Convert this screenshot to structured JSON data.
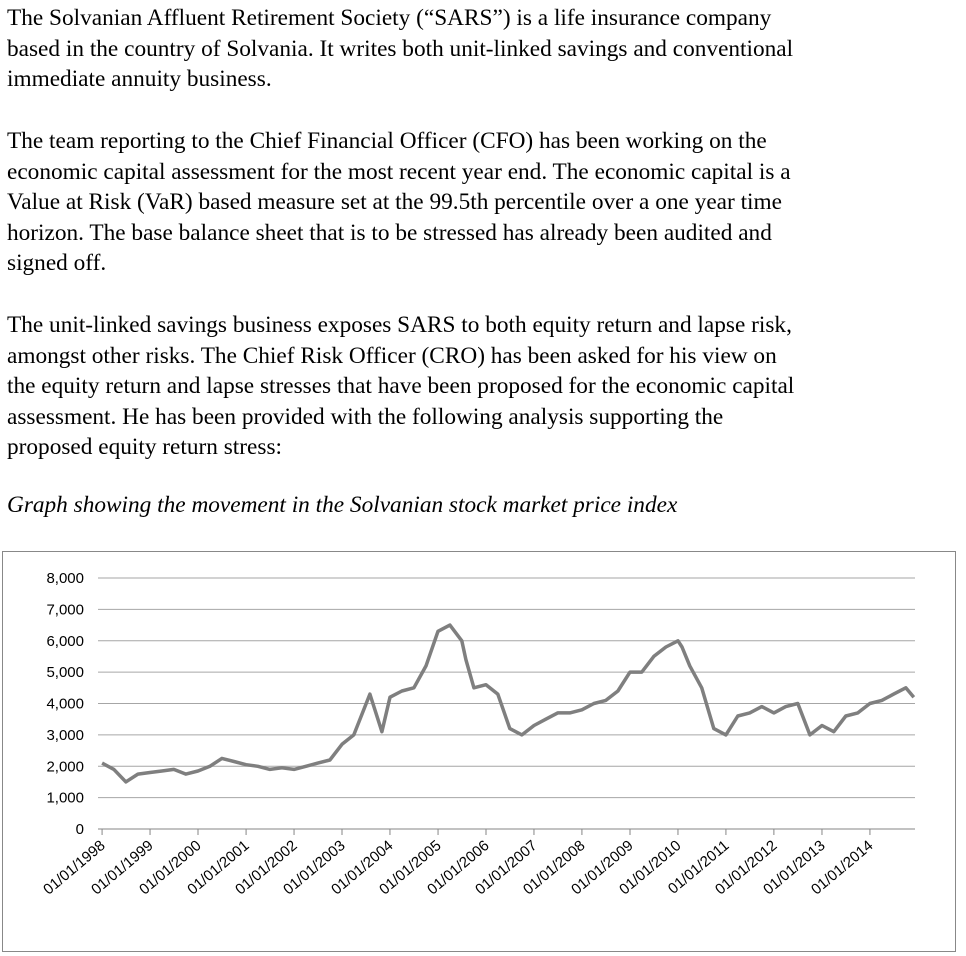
{
  "paragraphs": [
    [
      "The Solvanian Affluent Retirement Society (“SARS”) is a life insurance company",
      "based in the country of Solvania.  It writes both unit-linked savings and conventional",
      "immediate annuity business."
    ],
    [
      "The team reporting to the Chief Financial Officer (CFO) has been working on the",
      "economic capital assessment for the most recent year end.  The economic capital is a",
      "Value at Risk (VaR) based measure set at the 99.5th percentile over a one year time",
      "horizon.  The base balance sheet that is to be stressed has already been audited and",
      "signed off."
    ],
    [
      "The unit-linked savings business exposes SARS to both equity return and lapse risk,",
      "amongst other risks.  The Chief Risk Officer (CRO) has been asked for his view on",
      "the equity return and lapse stresses that have been proposed for the economic capital",
      "assessment.  He has been provided with the following analysis supporting the",
      "proposed equity return stress:"
    ]
  ],
  "caption": "Graph showing the movement in the Solvanian stock market price index",
  "chart_data": {
    "type": "line",
    "color": "#7f7f7f",
    "grid": true,
    "x": [
      "01/01/1998",
      "01/04/1998",
      "01/07/1998",
      "01/10/1998",
      "01/01/1999",
      "01/04/1999",
      "01/07/1999",
      "01/10/1999",
      "01/01/2000",
      "01/04/2000",
      "01/07/2000",
      "01/10/2000",
      "01/01/2001",
      "01/04/2001",
      "01/07/2001",
      "01/10/2001",
      "01/01/2002",
      "01/04/2002",
      "01/07/2002",
      "01/10/2002",
      "01/01/2003",
      "01/04/2003",
      "01/08/2003",
      "01/11/2003",
      "01/01/2004",
      "01/04/2004",
      "01/07/2004",
      "01/10/2004",
      "01/01/2005",
      "01/04/2005",
      "01/07/2005",
      "01/08/2005",
      "01/10/2005",
      "01/01/2006",
      "01/04/2006",
      "01/07/2006",
      "01/10/2006",
      "01/01/2007",
      "01/04/2007",
      "01/07/2007",
      "01/10/2007",
      "01/01/2008",
      "01/04/2008",
      "01/07/2008",
      "01/10/2008",
      "01/01/2009",
      "01/04/2009",
      "01/07/2009",
      "01/10/2009",
      "01/01/2010",
      "01/02/2010",
      "01/04/2010",
      "01/07/2010",
      "01/10/2010",
      "01/01/2011",
      "01/04/2011",
      "01/07/2011",
      "01/10/2011",
      "01/01/2012",
      "01/04/2012",
      "01/07/2012",
      "01/10/2012",
      "01/01/2013",
      "01/04/2013",
      "01/07/2013",
      "01/10/2013",
      "01/01/2014",
      "01/04/2014",
      "01/07/2014",
      "01/10/2014",
      "01/12/2014"
    ],
    "values": [
      2100,
      1900,
      1500,
      1750,
      1800,
      1850,
      1900,
      1750,
      1850,
      2000,
      2250,
      2150,
      2050,
      2000,
      1900,
      1950,
      1900,
      2000,
      2100,
      2200,
      2700,
      3000,
      4300,
      3100,
      4200,
      4400,
      4500,
      5200,
      6300,
      6500,
      6000,
      5400,
      4500,
      4600,
      4300,
      3200,
      3000,
      3300,
      3500,
      3700,
      3700,
      3800,
      4000,
      4100,
      4400,
      5000,
      5000,
      5500,
      5800,
      6000,
      5800,
      5200,
      4500,
      3200,
      3000,
      3600,
      3700,
      3900,
      3700,
      3900,
      4000,
      3000,
      3300,
      3100,
      3600,
      3700,
      4000,
      4100,
      4300,
      4500,
      4200
    ],
    "xlim": [
      "01/12/1997",
      "10/12/2014"
    ],
    "xticks": [
      "01/01/1998",
      "01/01/1999",
      "01/01/2000",
      "01/01/2001",
      "01/01/2002",
      "01/01/2003",
      "01/01/2004",
      "01/01/2005",
      "01/01/2006",
      "01/01/2007",
      "01/01/2008",
      "01/01/2009",
      "01/01/2010",
      "01/01/2011",
      "01/01/2012",
      "01/01/2013",
      "01/01/2014"
    ],
    "ylim": [
      0,
      8000
    ],
    "yticks": [
      0,
      {
        "value": 1000,
        "label": "1,000"
      },
      {
        "value": 2000,
        "label": "2,000"
      },
      {
        "value": 3000,
        "label": "3,000"
      },
      {
        "value": 4000,
        "label": "4,000"
      },
      {
        "value": 5000,
        "label": "5,000"
      },
      {
        "value": 6000,
        "label": "6,000"
      },
      {
        "value": 7000,
        "label": "7,000"
      },
      {
        "value": 8000,
        "label": "8,000"
      }
    ]
  }
}
